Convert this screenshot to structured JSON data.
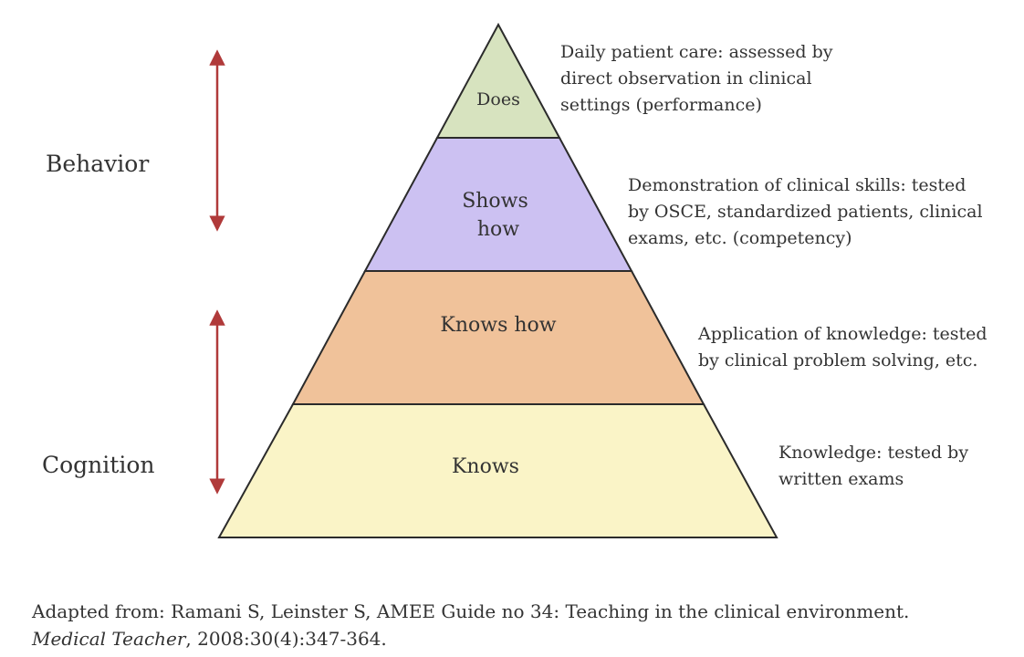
{
  "pyramid": {
    "levels": [
      {
        "id": "does",
        "label_lines": [
          "Does"
        ],
        "fill": "#d7e3bf",
        "description_lines": [
          "Daily patient care: assessed by",
          "direct observation in clinical",
          "settings (performance)"
        ]
      },
      {
        "id": "shows-how",
        "label_lines": [
          "Shows",
          "how"
        ],
        "fill": "#ccc1f2",
        "description_lines": [
          "Demonstration of clinical skills: tested",
          "by OSCE, standardized patients, clinical",
          "exams, etc. (competency)"
        ]
      },
      {
        "id": "knows-how",
        "label_lines": [
          "Knows how"
        ],
        "fill": "#f0c29a",
        "description_lines": [
          "Application of knowledge: tested",
          "by clinical problem solving, etc."
        ]
      },
      {
        "id": "knows",
        "label_lines": [
          "Knows"
        ],
        "fill": "#faf4c7",
        "description_lines": [
          "Knowledge: tested by",
          "written exams"
        ]
      }
    ],
    "outline_color": "#2b2b2b"
  },
  "side_labels": {
    "behavior": "Behavior",
    "cognition": "Cognition"
  },
  "arrow_color": "#b03a3a",
  "citation": {
    "line1": "Adapted from: Ramani S, Leinster S, AMEE Guide no 34: Teaching in the clinical environment.",
    "journal": "Medical Teacher",
    "details": ", 2008:30(4):347-364."
  }
}
